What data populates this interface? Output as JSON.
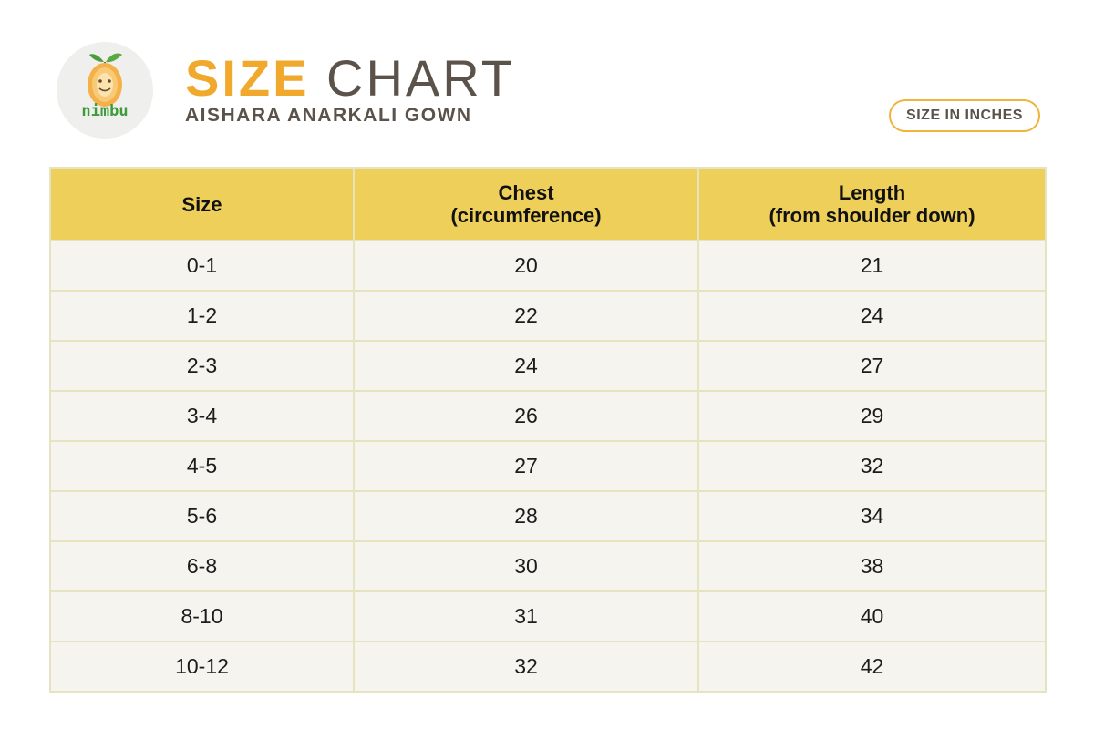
{
  "brand": {
    "logo_text": "nimbu",
    "colors": {
      "accent": "#f0a92c",
      "leaf": "#4f9b3c",
      "fruit": "#f5b04a"
    }
  },
  "header": {
    "title_strong": "SIZE",
    "title_rest": "CHART",
    "subtitle": "AISHARA ANARKALI GOWN",
    "unit_badge": "SIZE IN INCHES"
  },
  "table": {
    "columns": [
      {
        "line1": "Size",
        "line2": ""
      },
      {
        "line1": "Chest",
        "line2": "(circumference)"
      },
      {
        "line1": "Length",
        "line2": "(from shoulder down)"
      }
    ],
    "rows": [
      [
        "0-1",
        "20",
        "21"
      ],
      [
        "1-2",
        "22",
        "24"
      ],
      [
        "2-3",
        "24",
        "27"
      ],
      [
        "3-4",
        "26",
        "29"
      ],
      [
        "4-5",
        "27",
        "32"
      ],
      [
        "5-6",
        "28",
        "34"
      ],
      [
        "6-8",
        "30",
        "38"
      ],
      [
        "8-10",
        "31",
        "40"
      ],
      [
        "10-12",
        "32",
        "42"
      ]
    ]
  }
}
